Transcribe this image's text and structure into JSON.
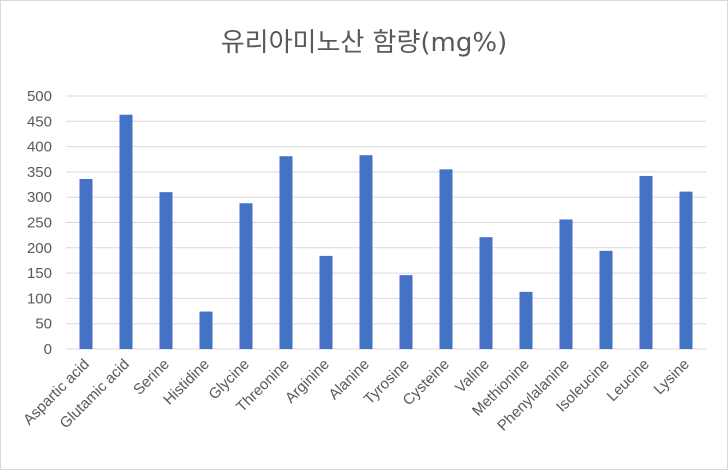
{
  "chart_data": {
    "type": "bar",
    "title": "유리아미노산 함량(mg%)",
    "categories": [
      "Aspartic acid",
      "Glutamic acid",
      "Serine",
      "Histidine",
      "Glycine",
      "Threonine",
      "Arginine",
      "Alanine",
      "Tyrosine",
      "Cysteine",
      "Valine",
      "Methionine",
      "Phenylalanine",
      "Isoleucine",
      "Leucine",
      "Lysine"
    ],
    "values": [
      336,
      463,
      310,
      74,
      288,
      381,
      184,
      383,
      146,
      355,
      221,
      113,
      256,
      194,
      342,
      311
    ],
    "ylim": [
      0,
      500
    ],
    "yticks": [
      "0",
      "50",
      "100",
      "150",
      "200",
      "250",
      "300",
      "350",
      "400",
      "450",
      "500"
    ],
    "grid": true,
    "legend": "none",
    "bar_color": "#4472c4",
    "grid_color": "#d9d9d9"
  }
}
